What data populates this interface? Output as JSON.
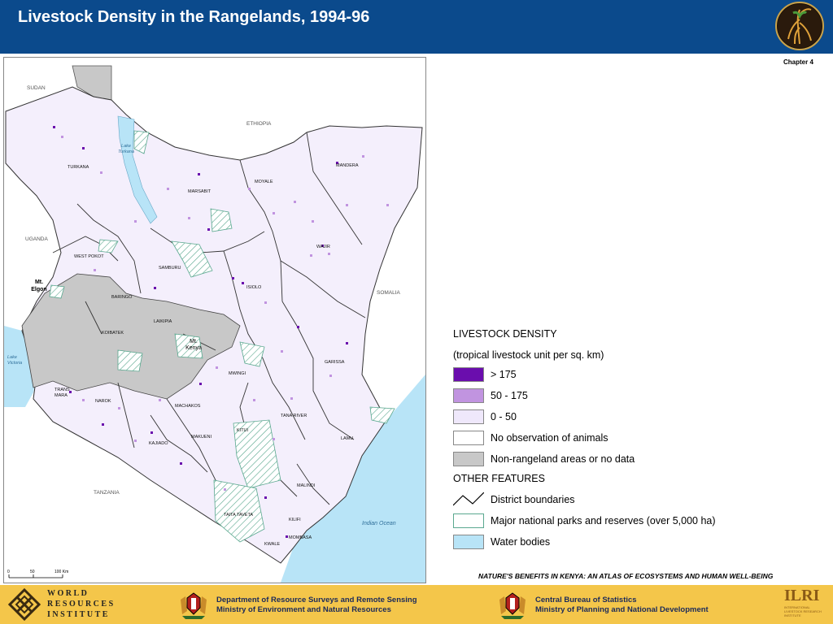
{
  "header": {
    "title": "Livestock Density in the Rangelands, 1994-96"
  },
  "chapter": "Chapter 4",
  "map": {
    "country_labels": {
      "sudan": "SUDAN",
      "ethiopia": "ETHIOPIA",
      "somalia": "SOMALIA",
      "uganda": "UGANDA",
      "tanzania": "TANZANIA"
    },
    "water_labels": {
      "lake_turkana": "Lake Turkana",
      "lake_victoria": "Lake Victoria",
      "indian_ocean": "Indian Ocean"
    },
    "mountain_labels": {
      "elgon": "Mt. Elgon",
      "kenya": "Mt. Kenya"
    },
    "district_labels": {
      "turkana": "TURKANA",
      "marsabit": "MARSABIT",
      "moyale": "MOYALE",
      "mandera": "MANDERA",
      "wajir": "WAJIR",
      "west_pokot": "WEST POKOT",
      "samburu": "SAMBURU",
      "isiolo": "ISIOLO",
      "baringo": "BARINGO",
      "laikipia": "LAIKIPIA",
      "koibatek": "KOIBATEK",
      "garissa": "GARISSA",
      "mwingi": "MWINGI",
      "trans_mara": "TRANS MARA",
      "narok": "NAROK",
      "machakos": "MACHAKOS",
      "tana_river": "TANA RIVER",
      "kitui": "KITUI",
      "makueni": "MAKUENI",
      "kajiado": "KAJIADO",
      "lamu": "LAMU",
      "malindi": "MALINDI",
      "taita_taveta": "TAITA TAVETA",
      "kilifi": "KILIFI",
      "mombasa": "MOMBASA",
      "kwale": "KWALE"
    },
    "scale_bar": {
      "ticks": [
        "0",
        "50",
        "100 Km"
      ]
    }
  },
  "legend": {
    "title": "LIVESTOCK DENSITY",
    "subtitle": "(tropical livestock unit per sq. km)",
    "density_classes": [
      {
        "label": "> 175",
        "color": "#6a0dad"
      },
      {
        "label": "50 - 175",
        "color": "#c194e0"
      },
      {
        "label": "0 - 50",
        "color": "#efe8fb"
      },
      {
        "label": "No observation of animals",
        "color": "#ffffff"
      },
      {
        "label": "Non-rangeland areas or no data",
        "color": "#c8c8c8"
      }
    ],
    "other_title": "OTHER FEATURES",
    "other_features": [
      {
        "label": "District boundaries",
        "icon": "district-boundary-line"
      },
      {
        "label": "Major national parks and reserves (over 5,000 ha)",
        "icon": "hatched-park-swatch",
        "color": "#5aa88f"
      },
      {
        "label": "Water bodies",
        "color": "#b8e4f7"
      }
    ]
  },
  "atlas_title": "NATURE'S BENEFITS IN KENYA: AN ATLAS OF ECOSYSTEMS AND HUMAN WELL-BEING",
  "footer": {
    "wri_lines": [
      "WORLD",
      "RESOURCES",
      "INSTITUTE"
    ],
    "dept1": [
      "Department of Resource Surveys and Remote Sensing",
      "Ministry of Environment and Natural Resources"
    ],
    "dept2": [
      "Central Bureau of Statistics",
      "Ministry of Planning and National Development"
    ],
    "ilri": {
      "acronym": "ILRI",
      "line1": "INTERNATIONAL",
      "line2": "LIVESTOCK RESEARCH",
      "line3": "INSTITUTE"
    }
  },
  "colors": {
    "header_bg": "#0b4a8c",
    "footer_bg": "#f4c64a",
    "water": "#b8e4f7",
    "non_rangeland": "#c8c8c8",
    "park_hatch": "#5aa88f"
  }
}
